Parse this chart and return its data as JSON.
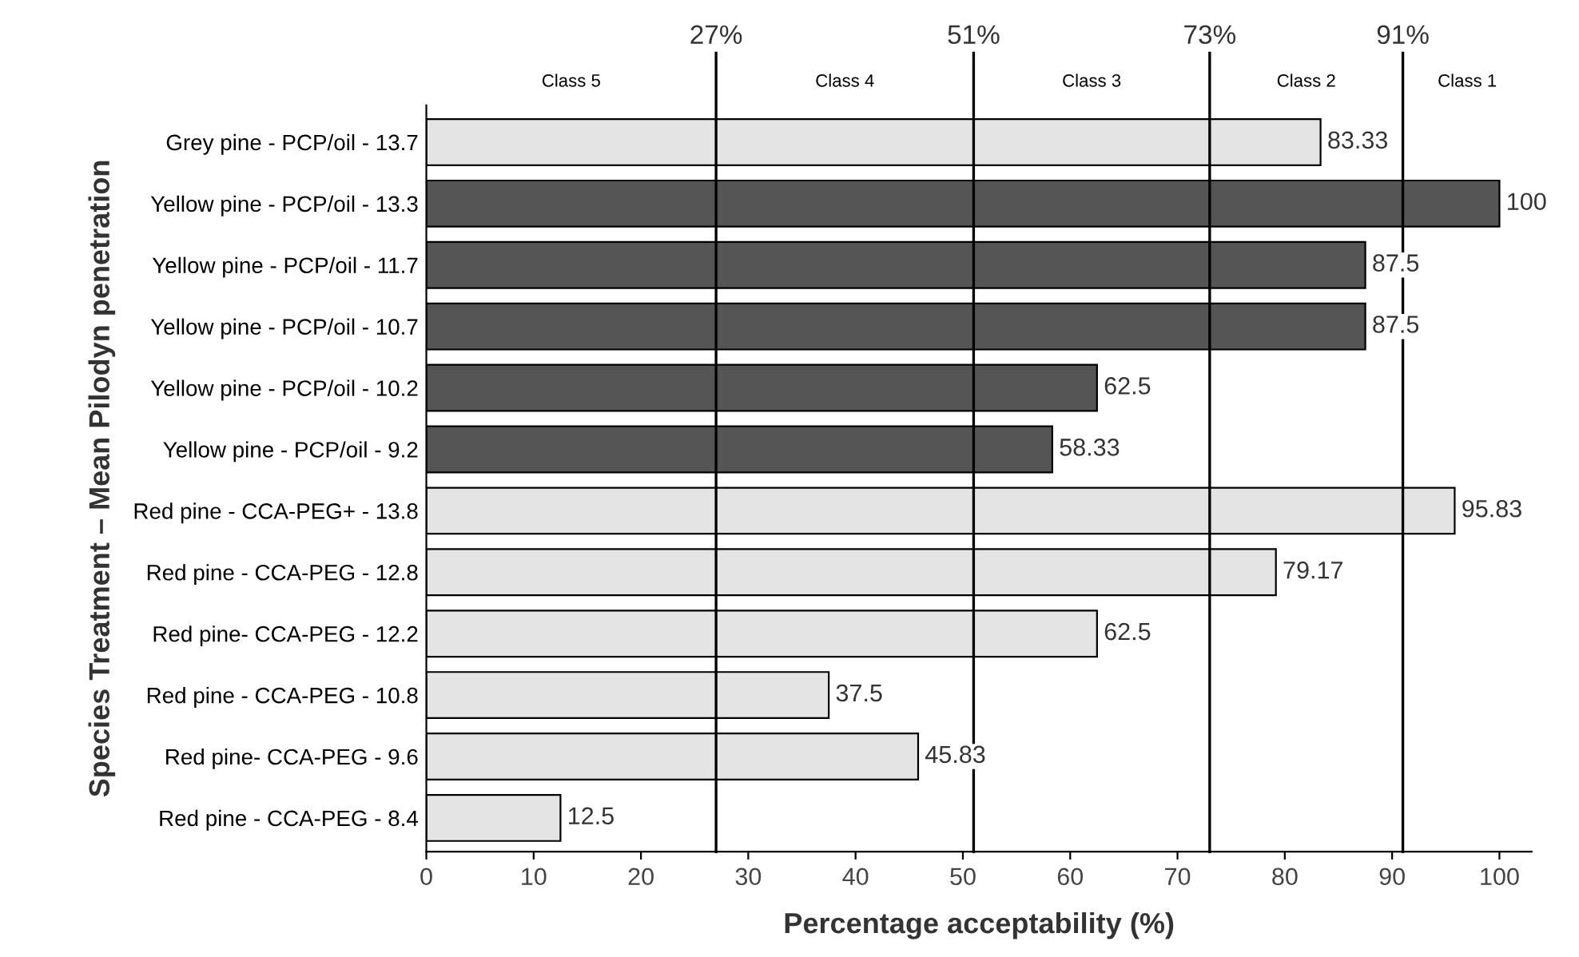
{
  "chart_data": {
    "type": "bar",
    "orientation": "horizontal",
    "xlabel": "Percentage acceptability (%)",
    "ylabel": "Species Treatment – Mean Pilodyn penetration",
    "categories": [
      "Grey pine - PCP/oil - 13.7",
      "Yellow pine - PCP/oil - 13.3",
      "Yellow pine - PCP/oil - 11.7",
      "Yellow pine - PCP/oil - 10.7",
      "Yellow pine - PCP/oil - 10.2",
      "Yellow pine - PCP/oil - 9.2",
      "Red pine - CCA-PEG+ - 13.8",
      "Red pine - CCA-PEG - 12.8",
      "Red pine- CCA-PEG - 12.2",
      "Red pine - CCA-PEG - 10.8",
      "Red pine- CCA-PEG - 9.6",
      "Red pine - CCA-PEG - 8.4"
    ],
    "values": [
      83.33,
      100,
      87.5,
      87.5,
      62.5,
      58.33,
      95.83,
      79.17,
      62.5,
      37.5,
      45.83,
      12.5
    ],
    "colors": [
      "#e4e4e4",
      "#555555",
      "#555555",
      "#555555",
      "#555555",
      "#555555",
      "#e4e4e4",
      "#e4e4e4",
      "#e4e4e4",
      "#e4e4e4",
      "#e4e4e4",
      "#e4e4e4"
    ],
    "data_labels": true,
    "xlim": [
      0,
      103
    ],
    "xticks": [
      0,
      10,
      20,
      30,
      40,
      50,
      60,
      70,
      80,
      90,
      100
    ],
    "grid": false,
    "legend": false,
    "ref_lines": [
      {
        "axis": "x",
        "value": 27,
        "label": "27%",
        "color": "#000000"
      },
      {
        "axis": "x",
        "value": 51,
        "label": "51%",
        "color": "#000000"
      },
      {
        "axis": "x",
        "value": 73,
        "label": "73%",
        "color": "#000000"
      },
      {
        "axis": "x",
        "value": 91,
        "label": "91%",
        "color": "#000000"
      }
    ],
    "annotations": [
      "Class 5",
      "Class 4",
      "Class 3",
      "Class 2",
      "Class 1"
    ]
  }
}
